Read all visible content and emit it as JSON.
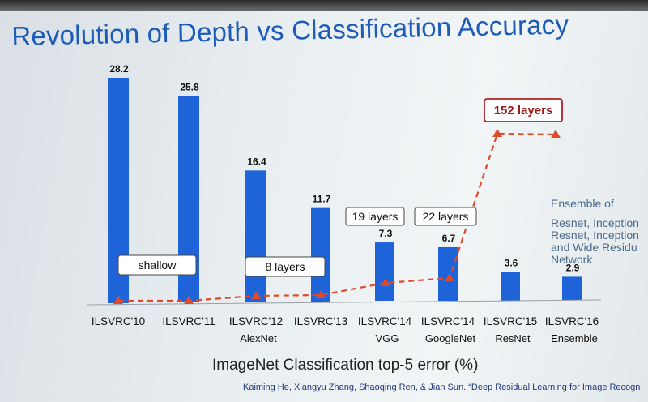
{
  "title": "Revolution of Depth vs Classification Accuracy",
  "xlabel": "ImageNet Classification top-5 error (%)",
  "citation": "Kaiming He, Xiangyu Zhang, Shaoqing Ren, & Jian Sun. “Deep Residual Learning for Image Recogn",
  "colors": {
    "bar": "#1f63d8",
    "trend": "#e04a2a",
    "title": "#1d5bb8",
    "callout_border": "#b02020"
  },
  "ensemble_note": {
    "head": "Ensemble of",
    "lines": [
      "Resnet, Inception",
      "Resnet, Inception",
      "and Wide Residu",
      "Network"
    ]
  },
  "chart_data": {
    "type": "bar",
    "categories": [
      "ILSVRC'10",
      "ILSVRC'11",
      "ILSVRC'12",
      "ILSVRC'13",
      "ILSVRC'14",
      "ILSVRC'14",
      "ILSVRC'15",
      "ILSVRC'16"
    ],
    "subcategories": [
      "",
      "",
      "AlexNet",
      "",
      "VGG",
      "GoogleNet",
      "ResNet",
      "Ensemble"
    ],
    "values": [
      28.2,
      25.8,
      16.4,
      11.7,
      7.3,
      6.7,
      3.6,
      2.9
    ],
    "value_labels": [
      "28.2",
      "25.8",
      "16.4",
      "11.7",
      "7.3",
      "6.7",
      "3.6",
      "2.9"
    ],
    "ylim": [
      0,
      30
    ],
    "grid": false,
    "depth_trend": {
      "style": "dashed line with triangle markers",
      "annotations": [
        "shallow",
        "8 layers",
        "19 layers",
        "22 layers",
        "152 layers"
      ]
    }
  }
}
